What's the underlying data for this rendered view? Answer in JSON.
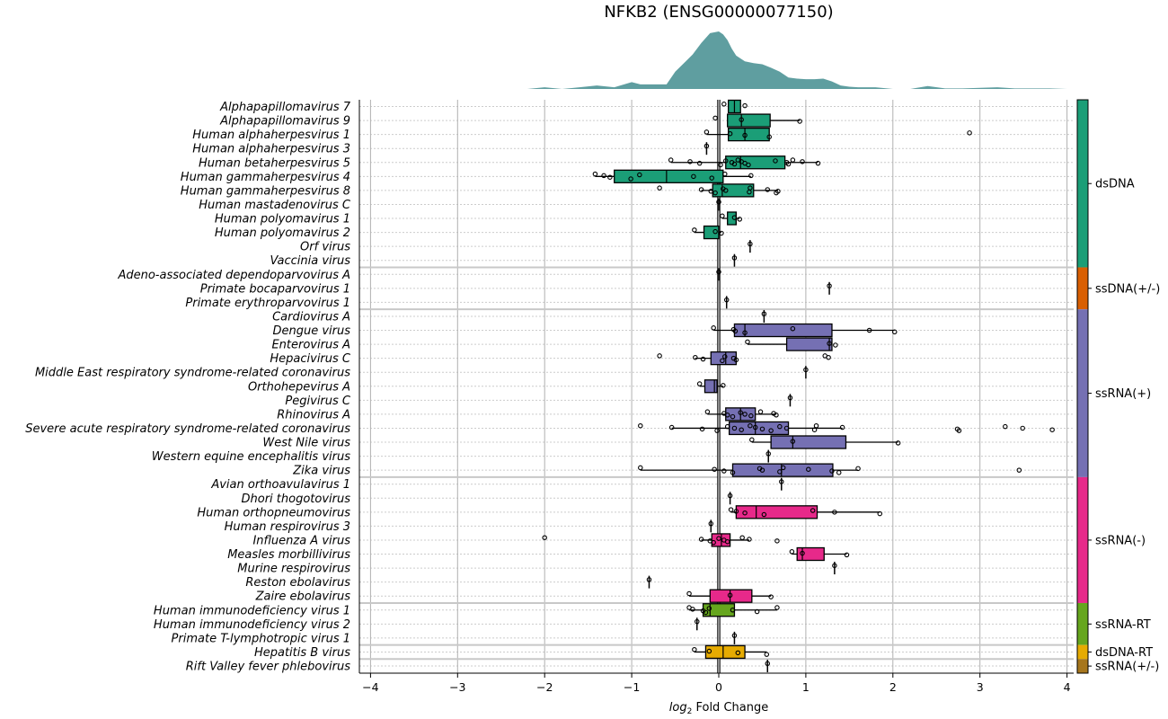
{
  "chart_data": {
    "type": "box",
    "title": "NFKB2 (ENSG00000077150)",
    "xlabel": "log2 Fold Change",
    "xlabel_sub": "2",
    "xlim": [
      -4.12,
      4.1
    ],
    "xticks": [
      -4,
      -3,
      -2,
      -1,
      0,
      1,
      2,
      3,
      4
    ],
    "xtick_labels": [
      "−4",
      "−3",
      "−2",
      "−1",
      "0",
      "1",
      "2",
      "3",
      "4"
    ],
    "reference_line_x": 0,
    "grid": true,
    "density": {
      "color": "#5f9ea0",
      "x": [
        -2.2,
        -2.0,
        -1.8,
        -1.6,
        -1.4,
        -1.2,
        -1.0,
        -0.9,
        -0.8,
        -0.7,
        -0.6,
        -0.5,
        -0.4,
        -0.3,
        -0.2,
        -0.1,
        0.0,
        0.05,
        0.1,
        0.15,
        0.2,
        0.3,
        0.4,
        0.5,
        0.6,
        0.7,
        0.8,
        0.9,
        1.0,
        1.1,
        1.2,
        1.3,
        1.4,
        1.5,
        1.6,
        1.8,
        2.0,
        2.2,
        2.4,
        2.6,
        2.8,
        3.0,
        3.2,
        3.4,
        3.6,
        3.8,
        4.0,
        4.1
      ],
      "y": [
        0.0,
        0.03,
        0.0,
        0.03,
        0.06,
        0.03,
        0.12,
        0.08,
        0.08,
        0.08,
        0.08,
        0.3,
        0.45,
        0.6,
        0.8,
        0.97,
        1.0,
        0.95,
        0.85,
        0.7,
        0.58,
        0.48,
        0.45,
        0.43,
        0.37,
        0.3,
        0.2,
        0.18,
        0.17,
        0.17,
        0.18,
        0.13,
        0.06,
        0.04,
        0.03,
        0.03,
        0.0,
        0.0,
        0.05,
        0.01,
        0.01,
        0.02,
        0.03,
        0.01,
        0.01,
        0.01,
        0.0,
        0.0
      ]
    },
    "groups": [
      {
        "name": "dsDNA",
        "color": "#1b9e77",
        "rows": [
          {
            "label": "Alphapapillomavirus 7",
            "box": [
              0.11,
              0.18,
              0.25
            ],
            "whisker": [
              0.11,
              0.25
            ],
            "points": [
              0.06,
              0.3
            ]
          },
          {
            "label": "Alphapapillomavirus 9",
            "box": [
              0.1,
              0.26,
              0.59
            ],
            "whisker": [
              0.1,
              0.93
            ],
            "points": [
              -0.04,
              0.26,
              0.93
            ]
          },
          {
            "label": "Human alphaherpesvirus 1",
            "box": [
              0.11,
              0.3,
              0.58
            ],
            "whisker": [
              -0.14,
              0.58
            ],
            "points": [
              -0.14,
              0.13,
              0.3,
              0.58,
              2.88
            ]
          },
          {
            "label": "Human alphaherpesvirus 3",
            "box": [
              -0.14,
              -0.14,
              -0.14
            ],
            "whisker": [
              -0.14,
              -0.14
            ],
            "points": [
              -0.14
            ]
          },
          {
            "label": "Human betaherpesvirus 5",
            "box": [
              0.08,
              0.25,
              0.76
            ],
            "whisker": [
              -0.55,
              1.14
            ],
            "points": [
              -0.55,
              -0.33,
              -0.22,
              0.02,
              0.08,
              0.15,
              0.18,
              0.22,
              0.26,
              0.3,
              0.34,
              0.65,
              0.78,
              0.8,
              0.85,
              0.96,
              1.14
            ]
          },
          {
            "label": "Human gammaherpesvirus 4",
            "box": [
              -1.2,
              -0.6,
              0.05
            ],
            "whisker": [
              -1.42,
              0.37
            ],
            "points": [
              -1.42,
              -1.32,
              -1.25,
              -1.01,
              -0.91,
              -0.29,
              -0.08,
              0.07,
              0.37
            ]
          },
          {
            "label": "Human gammaherpesvirus 8",
            "box": [
              -0.07,
              0.04,
              0.4
            ],
            "whisker": [
              -0.2,
              0.68
            ],
            "points": [
              -0.68,
              -0.2,
              -0.09,
              -0.04,
              0.05,
              0.08,
              0.35,
              0.36,
              0.56,
              0.68,
              0.66
            ]
          },
          {
            "label": "Human mastadenovirus C",
            "box": [
              0.0,
              0.0,
              0.0
            ],
            "whisker": [
              0.0,
              0.0
            ],
            "points": [
              0.0
            ]
          },
          {
            "label": "Human polyomavirus 1",
            "box": [
              0.1,
              0.2,
              0.2
            ],
            "whisker": [
              0.04,
              0.24
            ],
            "points": [
              0.04,
              0.18,
              0.24
            ]
          },
          {
            "label": "Human polyomavirus 2",
            "box": [
              -0.17,
              0.0,
              0.0
            ],
            "whisker": [
              -0.28,
              0.03
            ],
            "points": [
              -0.28,
              -0.04,
              0.03
            ]
          },
          {
            "label": "Orf virus",
            "box": [
              0.36,
              0.36,
              0.36
            ],
            "whisker": [
              0.36,
              0.36
            ],
            "points": [
              0.36
            ]
          },
          {
            "label": "Vaccinia virus",
            "box": [
              0.18,
              0.18,
              0.18
            ],
            "whisker": [
              0.18,
              0.18
            ],
            "points": [
              0.18
            ]
          }
        ]
      },
      {
        "name": "ssDNA(+/-)",
        "color": "#d95f02",
        "rows": [
          {
            "label": "Adeno-associated dependoparvovirus A",
            "box": [
              0.0,
              0.0,
              0.0
            ],
            "whisker": [
              0.0,
              0.0
            ],
            "points": [
              0.0
            ]
          },
          {
            "label": "Primate bocaparvovirus 1",
            "box": [
              1.27,
              1.27,
              1.27
            ],
            "whisker": [
              1.27,
              1.27
            ],
            "points": [
              1.27
            ]
          },
          {
            "label": "Primate erythroparvovirus 1",
            "box": [
              0.09,
              0.09,
              0.09
            ],
            "whisker": [
              0.09,
              0.09
            ],
            "points": [
              0.09
            ]
          }
        ]
      },
      {
        "name": "ssRNA(+)",
        "color": "#7570b3",
        "rows": [
          {
            "label": "Cardiovirus A",
            "box": [
              0.52,
              0.52,
              0.52
            ],
            "whisker": [
              0.52,
              0.52
            ],
            "points": [
              0.52
            ]
          },
          {
            "label": "Dengue virus",
            "box": [
              0.18,
              0.3,
              1.3
            ],
            "whisker": [
              -0.06,
              2.02
            ],
            "points": [
              -0.06,
              0.17,
              0.19,
              0.3,
              0.85,
              1.73,
              2.02
            ]
          },
          {
            "label": "Enterovirus A",
            "box": [
              0.78,
              1.27,
              1.3
            ],
            "whisker": [
              0.33,
              1.3
            ],
            "points": [
              0.33,
              1.27,
              1.34
            ]
          },
          {
            "label": "Hepacivirus C",
            "box": [
              -0.09,
              0.08,
              0.2
            ],
            "whisker": [
              -0.27,
              0.2
            ],
            "points": [
              -0.68,
              -0.27,
              -0.18,
              0.04,
              0.07,
              0.17,
              0.2,
              1.22,
              1.26
            ]
          },
          {
            "label": "Middle East respiratory syndrome-related coronavirus",
            "box": [
              1.0,
              1.0,
              1.0
            ],
            "whisker": [
              1.0,
              1.0
            ],
            "points": [
              1.0
            ]
          },
          {
            "label": "Orthohepevirus A",
            "box": [
              -0.16,
              -0.05,
              -0.02
            ],
            "whisker": [
              -0.22,
              0.05
            ],
            "points": [
              -0.22,
              0.05
            ]
          },
          {
            "label": "Pegivirus C",
            "box": [
              0.82,
              0.82,
              0.82
            ],
            "whisker": [
              0.82,
              0.82
            ],
            "points": [
              0.82
            ]
          },
          {
            "label": "Rhinovirus A",
            "box": [
              0.08,
              0.25,
              0.42
            ],
            "whisker": [
              -0.13,
              0.66
            ],
            "points": [
              -0.13,
              0.06,
              0.1,
              0.16,
              0.25,
              0.3,
              0.37,
              0.48,
              0.63,
              0.66
            ]
          },
          {
            "label": "Severe acute respiratory syndrome-related coronavirus",
            "box": [
              0.12,
              0.42,
              0.8
            ],
            "whisker": [
              -0.54,
              1.42
            ],
            "points": [
              -0.9,
              -0.54,
              -0.19,
              -0.02,
              0.1,
              0.18,
              0.26,
              0.36,
              0.42,
              0.5,
              0.6,
              0.7,
              0.78,
              1.1,
              1.12,
              1.42,
              2.74,
              2.76,
              3.29,
              3.49,
              3.83
            ]
          },
          {
            "label": "West Nile virus",
            "box": [
              0.6,
              0.85,
              1.46
            ],
            "whisker": [
              0.38,
              2.06
            ],
            "points": [
              0.38,
              0.85,
              2.06
            ]
          },
          {
            "label": "Western equine encephalitis virus",
            "box": [
              0.57,
              0.57,
              0.57
            ],
            "whisker": [
              0.57,
              0.57
            ],
            "points": [
              0.57
            ]
          },
          {
            "label": "Zika virus",
            "box": [
              0.16,
              0.72,
              1.31
            ],
            "whisker": [
              -0.9,
              1.6
            ],
            "points": [
              -0.9,
              -0.05,
              0.06,
              0.16,
              0.47,
              0.5,
              0.7,
              0.74,
              1.03,
              1.3,
              1.38,
              1.6,
              3.45
            ]
          }
        ]
      },
      {
        "name": "ssRNA(-)",
        "color": "#e7298a",
        "rows": [
          {
            "label": "Avian orthoavulavirus 1",
            "box": [
              0.72,
              0.72,
              0.72
            ],
            "whisker": [
              0.72,
              0.72
            ],
            "points": [
              0.72
            ]
          },
          {
            "label": "Dhori thogotovirus",
            "box": [
              0.13,
              0.13,
              0.13
            ],
            "whisker": [
              0.13,
              0.13
            ],
            "points": [
              0.13
            ]
          },
          {
            "label": "Human orthopneumovirus",
            "box": [
              0.2,
              0.43,
              1.13
            ],
            "whisker": [
              0.14,
              1.85
            ],
            "points": [
              0.14,
              0.2,
              0.3,
              0.52,
              1.08,
              1.33,
              1.85
            ]
          },
          {
            "label": "Human respirovirus 3",
            "box": [
              -0.09,
              -0.09,
              -0.09
            ],
            "whisker": [
              -0.09,
              -0.09
            ],
            "points": [
              -0.09
            ]
          },
          {
            "label": "Influenza A virus",
            "box": [
              -0.08,
              0.03,
              0.13
            ],
            "whisker": [
              -0.2,
              0.35
            ],
            "points": [
              -2.0,
              -0.2,
              -0.1,
              -0.06,
              0.0,
              0.06,
              0.1,
              0.27,
              0.35,
              0.67
            ]
          },
          {
            "label": "Measles morbillivirus",
            "box": [
              0.9,
              0.96,
              1.21
            ],
            "whisker": [
              0.84,
              1.47
            ],
            "points": [
              0.84,
              0.96,
              1.47
            ]
          },
          {
            "label": "Murine respirovirus",
            "box": [
              1.33,
              1.33,
              1.33
            ],
            "whisker": [
              1.33,
              1.33
            ],
            "points": [
              1.33
            ]
          },
          {
            "label": "Reston ebolavirus",
            "box": [
              -0.8,
              -0.8,
              -0.8
            ],
            "whisker": [
              -0.8,
              -0.8
            ],
            "points": [
              -0.8
            ]
          },
          {
            "label": "Zaire ebolavirus",
            "box": [
              -0.1,
              0.13,
              0.38
            ],
            "whisker": [
              -0.34,
              0.6
            ],
            "points": [
              -0.34,
              0.13,
              0.6
            ]
          }
        ]
      },
      {
        "name": "ssRNA-RT",
        "color": "#66a61e",
        "rows": [
          {
            "label": "Human immunodeficiency virus 1",
            "box": [
              -0.18,
              -0.1,
              0.18
            ],
            "whisker": [
              -0.34,
              0.67
            ],
            "points": [
              -0.34,
              -0.3,
              -0.18,
              -0.15,
              -0.11,
              0.16,
              0.44,
              0.67
            ]
          },
          {
            "label": "Human immunodeficiency virus 2",
            "box": [
              -0.25,
              -0.25,
              -0.25
            ],
            "whisker": [
              -0.25,
              -0.25
            ],
            "points": [
              -0.25
            ]
          },
          {
            "label": "Primate T-lymphotropic virus 1",
            "box": [
              0.18,
              0.18,
              0.18
            ],
            "whisker": [
              0.18,
              0.18
            ],
            "points": [
              0.18
            ]
          }
        ]
      },
      {
        "name": "dsDNA-RT",
        "color": "#e6ab02",
        "rows": [
          {
            "label": "Hepatitis B virus",
            "box": [
              -0.15,
              0.05,
              0.3
            ],
            "whisker": [
              -0.28,
              0.55
            ],
            "points": [
              -0.28,
              -0.11,
              0.22,
              0.55
            ]
          }
        ]
      },
      {
        "name": "ssRNA(+/-)",
        "color": "#a6761d",
        "rows": [
          {
            "label": "Rift Valley fever phlebovirus",
            "box": [
              0.56,
              0.56,
              0.56
            ],
            "whisker": [
              0.56,
              0.56
            ],
            "points": [
              0.56
            ]
          }
        ]
      }
    ]
  }
}
